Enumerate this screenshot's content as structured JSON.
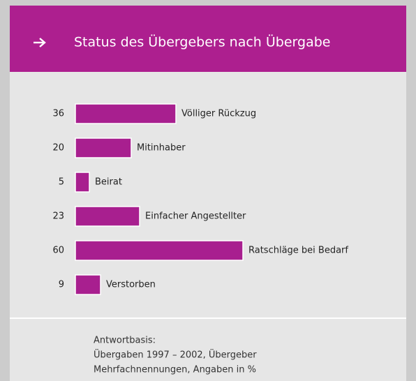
{
  "chart_data": {
    "type": "bar",
    "orientation": "horizontal",
    "title": "Status des Übergebers nach Übergabe",
    "categories": [
      "Völliger Rückzug",
      "Mitinhaber",
      "Beirat",
      "Einfacher Angestellter",
      "Ratschläge bei Bedarf",
      "Verstorben"
    ],
    "values": [
      36,
      20,
      5,
      23,
      60,
      9
    ],
    "color": "#a81f8f",
    "notes": [
      "Antwortbasis:",
      "Übergaben 1997 – 2002, Übergeber",
      "Mehrfachnennungen, Angaben in %"
    ]
  }
}
